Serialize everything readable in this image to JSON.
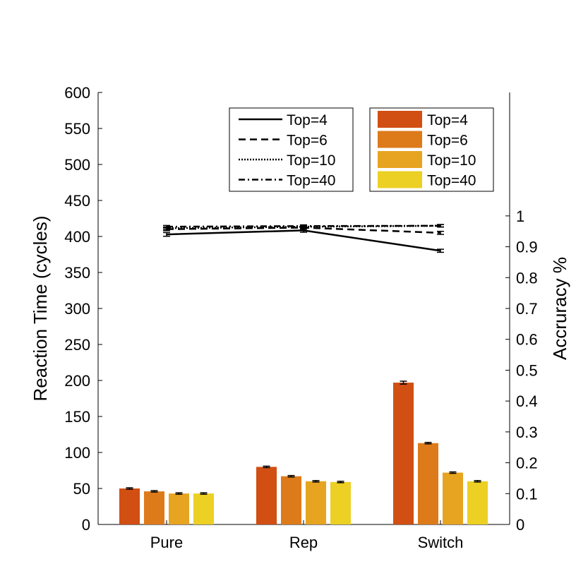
{
  "chart_data": {
    "type": "bar",
    "categories": [
      "Pure",
      "Rep",
      "Switch"
    ],
    "ylabel": "Reaction Time (cycles)",
    "y2label": "Accruracy %",
    "ylim": [
      0,
      600
    ],
    "yticks": [
      0,
      50,
      100,
      150,
      200,
      250,
      300,
      350,
      400,
      450,
      500,
      550,
      600
    ],
    "y2lim": [
      0,
      1.4
    ],
    "y2ticks": [
      0,
      0.1,
      0.2,
      0.3,
      0.4,
      0.5,
      0.6,
      0.7,
      0.8,
      0.9,
      1
    ],
    "y2ticklabels": [
      "0",
      "0.1",
      "0.2",
      "0.3",
      "0.4",
      "0.5",
      "0.6",
      "0.7",
      "0.8",
      "0.9",
      "1"
    ],
    "bar_series": [
      {
        "name": "Top=4",
        "color": "#d14f12",
        "values": [
          50,
          80,
          197
        ],
        "errors": [
          1,
          1,
          2
        ]
      },
      {
        "name": "Top=6",
        "color": "#dd7b1a",
        "values": [
          46,
          67,
          113
        ],
        "errors": [
          1,
          1,
          1
        ]
      },
      {
        "name": "Top=10",
        "color": "#e7a420",
        "values": [
          43,
          60,
          72
        ],
        "errors": [
          1,
          1,
          1
        ]
      },
      {
        "name": "Top=40",
        "color": "#ecd024",
        "values": [
          43,
          59,
          60
        ],
        "errors": [
          1,
          1,
          1
        ]
      }
    ],
    "line_series": [
      {
        "name": "Top=4",
        "dash": "solid",
        "values": [
          0.94,
          0.953,
          0.887
        ],
        "errors": [
          0.006,
          0.006,
          0.005
        ]
      },
      {
        "name": "Top=6",
        "dash": "dashed",
        "values": [
          0.957,
          0.962,
          0.945
        ],
        "errors": [
          0.005,
          0.005,
          0.005
        ]
      },
      {
        "name": "Top=10",
        "dash": "dotted",
        "values": [
          0.96,
          0.965,
          0.968
        ],
        "errors": [
          0.004,
          0.004,
          0.004
        ]
      },
      {
        "name": "Top=40",
        "dash": "dashdot",
        "values": [
          0.965,
          0.967,
          0.968
        ],
        "errors": [
          0.004,
          0.004,
          0.004
        ]
      }
    ],
    "line_legend_placement": "top-center",
    "bar_legend_placement": "top-right",
    "grid": false
  }
}
